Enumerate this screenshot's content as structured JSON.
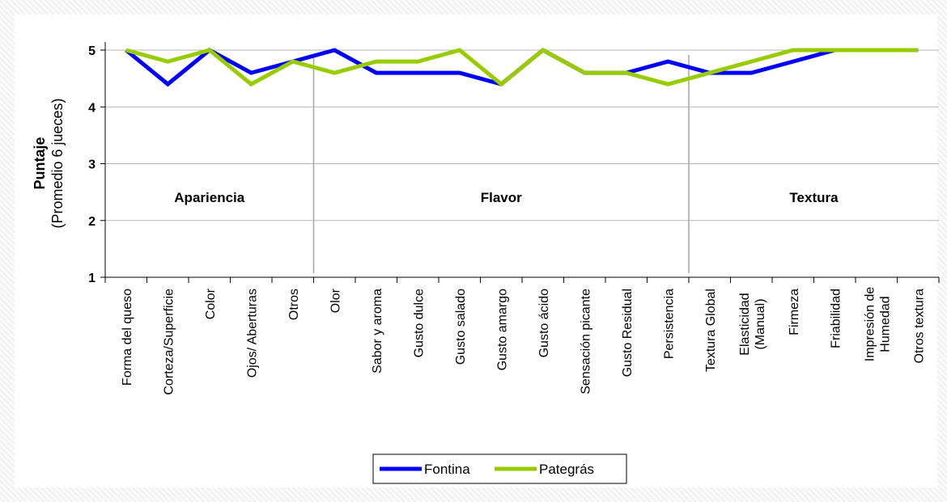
{
  "chart_data": {
    "type": "line",
    "ylabel": "Puntaje",
    "ylabel_sub": "(Promedio 6 jueces)",
    "ylim": [
      1,
      5
    ],
    "yticks": [
      "1",
      "2",
      "3",
      "4",
      "5"
    ],
    "grid": true,
    "legend_position": "bottom",
    "categories": [
      "Forma del queso",
      "Corteza/Superficie",
      "Color",
      "Ojos/ Aberturas",
      "Otros",
      "Olor",
      "Sabor y aroma",
      "Gusto dulce",
      "Gusto salado",
      "Gusto amargo",
      "Gusto ácido",
      "Sensación picante",
      "Gusto Residual",
      "Persistencia",
      "Textura Global",
      "Elasticidad (Manual)",
      "Firmeza",
      "Friabilidad",
      "Impresión de Humedad",
      "Otros textura"
    ],
    "category_lines": [
      [
        "Forma del queso"
      ],
      [
        "Corteza/Superficie"
      ],
      [
        "Color"
      ],
      [
        "Ojos/ Aberturas"
      ],
      [
        "Otros"
      ],
      [
        "Olor"
      ],
      [
        "Sabor y aroma"
      ],
      [
        "Gusto dulce"
      ],
      [
        "Gusto salado"
      ],
      [
        "Gusto amargo"
      ],
      [
        "Gusto ácido"
      ],
      [
        "Sensación picante"
      ],
      [
        "Gusto Residual"
      ],
      [
        "Persistencia"
      ],
      [
        "Textura Global"
      ],
      [
        "Elasticidad",
        "(Manual)"
      ],
      [
        "Firmeza"
      ],
      [
        "Friabilidad"
      ],
      [
        "Impresión de",
        "Humedad"
      ],
      [
        "Otros textura"
      ]
    ],
    "sections": [
      {
        "label": "Apariencia",
        "start": 0,
        "end": 4
      },
      {
        "label": "Flavor",
        "start": 5,
        "end": 13
      },
      {
        "label": "Textura",
        "start": 14,
        "end": 19
      }
    ],
    "series": [
      {
        "name": "Fontina",
        "color": "#0000ff",
        "values": [
          5.0,
          4.4,
          5.0,
          4.6,
          4.8,
          5.0,
          4.6,
          4.6,
          4.6,
          4.4,
          5.0,
          4.6,
          4.6,
          4.8,
          4.6,
          4.6,
          4.8,
          5.0,
          5.0,
          5.0
        ]
      },
      {
        "name": "Pategrás",
        "color": "#99cc00",
        "values": [
          5.0,
          4.8,
          5.0,
          4.4,
          4.8,
          4.6,
          4.8,
          4.8,
          5.0,
          4.4,
          5.0,
          4.6,
          4.6,
          4.4,
          4.6,
          4.8,
          5.0,
          5.0,
          5.0,
          5.0
        ]
      }
    ]
  }
}
